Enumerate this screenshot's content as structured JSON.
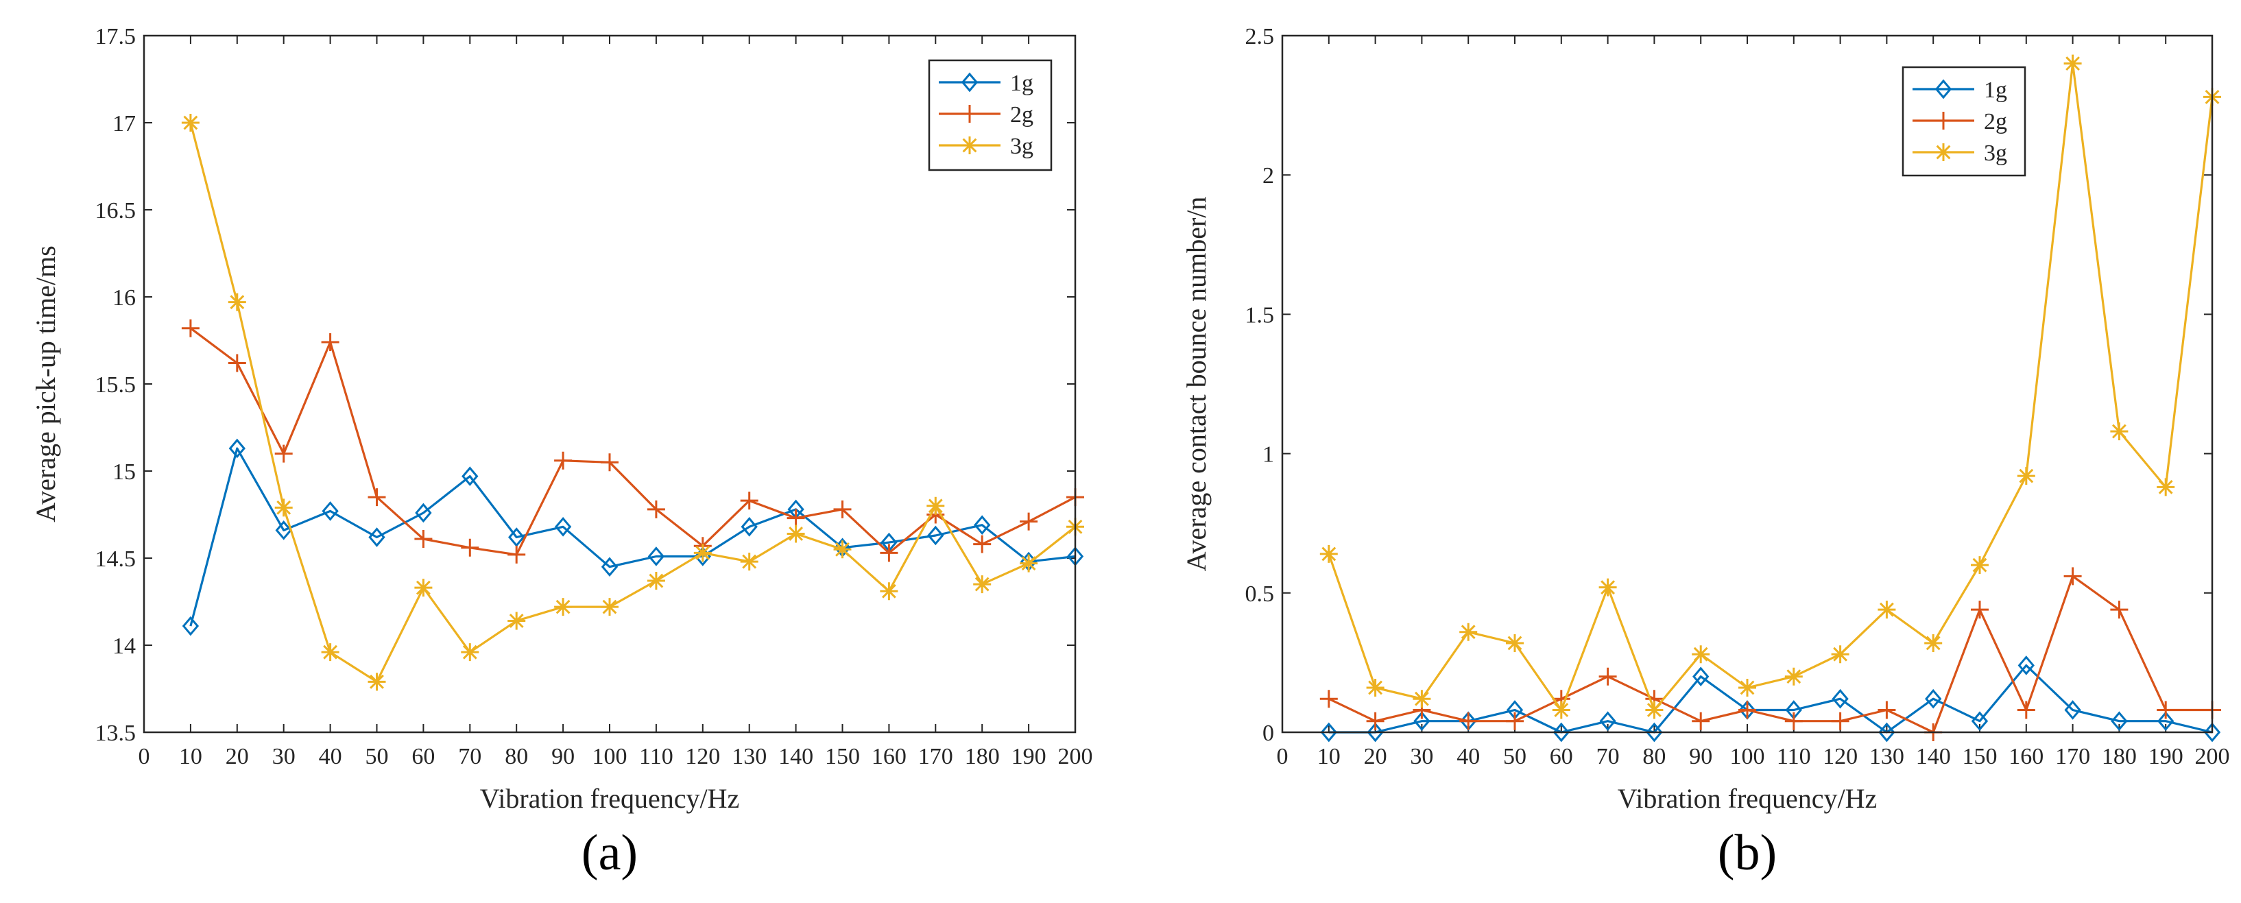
{
  "chart_data": [
    {
      "type": "line",
      "panel_label": "(a)",
      "title": "",
      "xlabel": "Vibration frequency/Hz",
      "ylabel": "Average pick-up time/ms",
      "xlim": [
        0,
        200
      ],
      "ylim": [
        13.5,
        17.5
      ],
      "xticks": [
        "0",
        "10",
        "20",
        "30",
        "40",
        "50",
        "60",
        "70",
        "80",
        "90",
        "100",
        "110",
        "120",
        "130",
        "140",
        "150",
        "160",
        "170",
        "180",
        "190",
        "200"
      ],
      "yticks": [
        "13.5",
        "14",
        "14.5",
        "15",
        "15.5",
        "16",
        "16.5",
        "17",
        "17.5"
      ],
      "legend_position": "top-right",
      "x": [
        10,
        20,
        30,
        40,
        50,
        60,
        70,
        80,
        90,
        100,
        110,
        120,
        130,
        140,
        150,
        160,
        170,
        180,
        190,
        200
      ],
      "series": [
        {
          "name": "1g",
          "color": "#0072BD",
          "marker": "diamond",
          "values": [
            14.11,
            15.13,
            14.66,
            14.77,
            14.62,
            14.76,
            14.97,
            14.62,
            14.68,
            14.45,
            14.51,
            14.51,
            14.68,
            14.78,
            14.56,
            14.59,
            14.63,
            14.69,
            14.48,
            14.51
          ]
        },
        {
          "name": "2g",
          "color": "#D95319",
          "marker": "plus",
          "values": [
            15.82,
            15.62,
            15.1,
            15.74,
            14.85,
            14.61,
            14.56,
            14.52,
            15.06,
            15.05,
            14.78,
            14.57,
            14.83,
            14.73,
            14.78,
            14.53,
            14.75,
            14.58,
            14.71,
            14.85
          ]
        },
        {
          "name": "3g",
          "color": "#EDB120",
          "marker": "asterisk",
          "values": [
            17.0,
            15.97,
            14.79,
            13.96,
            13.79,
            14.33,
            13.96,
            14.14,
            14.22,
            14.22,
            14.37,
            14.53,
            14.48,
            14.64,
            14.55,
            14.31,
            14.8,
            14.35,
            14.47,
            14.68
          ]
        }
      ]
    },
    {
      "type": "line",
      "panel_label": "(b)",
      "title": "",
      "xlabel": "Vibration frequency/Hz",
      "ylabel": "Average contact bounce number/n",
      "xlim": [
        0,
        200
      ],
      "ylim": [
        0,
        2.5
      ],
      "xticks": [
        "0",
        "10",
        "20",
        "30",
        "40",
        "50",
        "60",
        "70",
        "80",
        "90",
        "100",
        "110",
        "120",
        "130",
        "140",
        "150",
        "160",
        "170",
        "180",
        "190",
        "200"
      ],
      "yticks": [
        "0",
        "0.5",
        "1",
        "1.5",
        "2",
        "2.5"
      ],
      "legend_position": "top-right",
      "x": [
        10,
        20,
        30,
        40,
        50,
        60,
        70,
        80,
        90,
        100,
        110,
        120,
        130,
        140,
        150,
        160,
        170,
        180,
        190,
        200
      ],
      "series": [
        {
          "name": "1g",
          "color": "#0072BD",
          "marker": "diamond",
          "values": [
            0,
            0,
            0.04,
            0.04,
            0.08,
            0,
            0.04,
            0,
            0.2,
            0.08,
            0.08,
            0.12,
            0,
            0.12,
            0.04,
            0.24,
            0.08,
            0.04,
            0.04,
            0
          ]
        },
        {
          "name": "2g",
          "color": "#D95319",
          "marker": "plus",
          "values": [
            0.12,
            0.04,
            0.08,
            0.04,
            0.04,
            0.12,
            0.2,
            0.12,
            0.04,
            0.08,
            0.04,
            0.04,
            0.08,
            0,
            0.44,
            0.08,
            0.56,
            0.44,
            0.08,
            0.08
          ]
        },
        {
          "name": "3g",
          "color": "#EDB120",
          "marker": "asterisk",
          "values": [
            0.64,
            0.16,
            0.12,
            0.36,
            0.32,
            0.08,
            0.52,
            0.08,
            0.28,
            0.16,
            0.2,
            0.28,
            0.44,
            0.32,
            0.6,
            0.92,
            2.4,
            1.08,
            0.88,
            2.28
          ]
        }
      ]
    }
  ]
}
